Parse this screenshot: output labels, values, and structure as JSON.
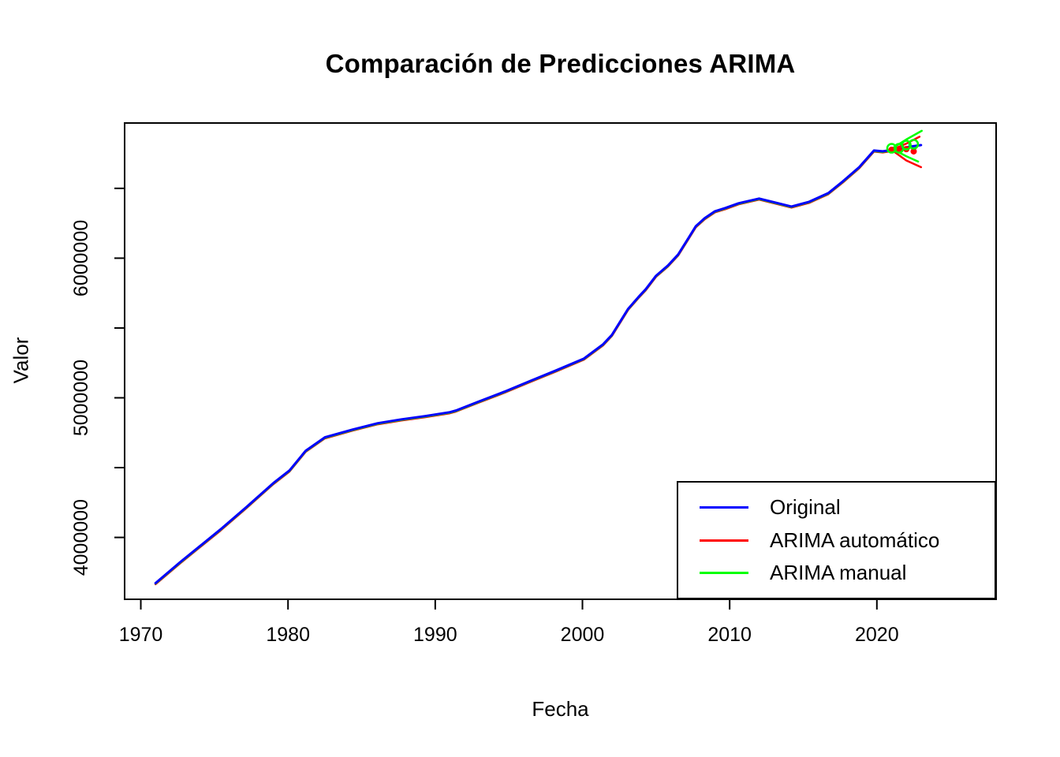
{
  "chart_data": {
    "type": "line",
    "title": "Comparación de Predicciones ARIMA",
    "xlabel": "Fecha",
    "ylabel": "Valor",
    "grid": false,
    "legend_position": "bottomright",
    "xlim": [
      1968.9,
      2028.1
    ],
    "ylim": [
      3557000,
      6968000
    ],
    "x_ticks": [
      1970,
      1980,
      1990,
      2000,
      2010,
      2020
    ],
    "y_ticks": [
      4000000,
      4500000,
      5000000,
      5500000,
      6000000,
      6500000
    ],
    "y_tick_labels": [
      "4000000",
      "",
      "5000000",
      "",
      "6000000",
      ""
    ],
    "series": [
      {
        "name": "Original",
        "color": "#0000FF",
        "x": [
          1971,
          1972.7,
          1975.4,
          1977.2,
          1979,
          1980.1,
          1981.2,
          1982.5,
          1984.4,
          1986.1,
          1987.7,
          1989.3,
          1991,
          1991.4,
          1992.9,
          1994.7,
          1996.5,
          1998.2,
          2000.1,
          2001.4,
          2002,
          2003.1,
          2003.8,
          2004.3,
          2005,
          2005.8,
          2006.5,
          2007.2,
          2007.7,
          2008.3,
          2009,
          2009.7,
          2010.6,
          2011.3,
          2012,
          2012.9,
          2014.2,
          2015.4,
          2016.7,
          2017.7,
          2018.8,
          2019.8,
          2020.4,
          2021.1,
          2021.7,
          2022.3,
          2023
        ],
        "y": [
          3673000,
          3825000,
          4056000,
          4220000,
          4389000,
          4480000,
          4621000,
          4717000,
          4773000,
          4818000,
          4846000,
          4869000,
          4897000,
          4909000,
          4971000,
          5044000,
          5123000,
          5196000,
          5281000,
          5383000,
          5450000,
          5637000,
          5721000,
          5778000,
          5874000,
          5947000,
          6026000,
          6144000,
          6229000,
          6286000,
          6336000,
          6359000,
          6393000,
          6410000,
          6427000,
          6404000,
          6370000,
          6404000,
          6466000,
          6551000,
          6652000,
          6771000,
          6765000,
          6776000,
          6788000,
          6799000,
          6810000
        ]
      },
      {
        "name": "ARIMA automático",
        "color": "#FF0000",
        "fitted_follows_original": true,
        "fitted_offset": -8000,
        "fitted_end_x": 2021.2,
        "forecast_x": [
          2021,
          2021.5,
          2022,
          2022.5
        ],
        "forecast_y": [
          6776000,
          6776000,
          6781000,
          6765000
        ],
        "marker": "filled-circle",
        "ci_upper": {
          "x": [
            2021.1,
            2022,
            2022.9
          ],
          "y": [
            6780000,
            6820000,
            6870000
          ]
        },
        "ci_lower": {
          "x": [
            2021.1,
            2022,
            2023
          ],
          "y": [
            6768000,
            6700000,
            6652000
          ]
        }
      },
      {
        "name": "ARIMA manual",
        "color": "#00FF00",
        "fitted_follows_original": true,
        "fitted_offset": -4000,
        "fitted_end_x": 2021.2,
        "forecast_x": [
          2021,
          2021.5,
          2022,
          2022.5
        ],
        "forecast_y": [
          6787000,
          6787000,
          6810000,
          6816000
        ],
        "marker": "open-circle",
        "ci_upper": {
          "x": [
            2021.1,
            2022,
            2023.05
          ],
          "y": [
            6790000,
            6850000,
            6912000
          ]
        },
        "ci_lower": {
          "x": [
            2021.1,
            2022,
            2022.8
          ],
          "y": [
            6780000,
            6730000,
            6692000
          ]
        }
      }
    ]
  }
}
